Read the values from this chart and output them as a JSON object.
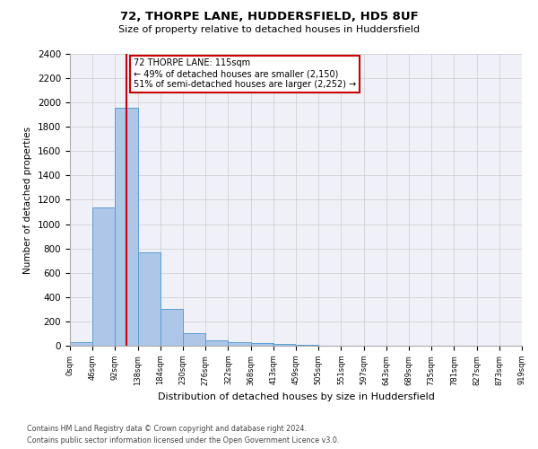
{
  "title1": "72, THORPE LANE, HUDDERSFIELD, HD5 8UF",
  "title2": "Size of property relative to detached houses in Huddersfield",
  "xlabel": "Distribution of detached houses by size in Huddersfield",
  "ylabel": "Number of detached properties",
  "footnote1": "Contains HM Land Registry data © Crown copyright and database right 2024.",
  "footnote2": "Contains public sector information licensed under the Open Government Licence v3.0.",
  "bar_left_edges": [
    0,
    46,
    92,
    138,
    184,
    230,
    276,
    322,
    368,
    413,
    459,
    505,
    551,
    597,
    643,
    689,
    735,
    781,
    827,
    873
  ],
  "bar_heights": [
    30,
    1140,
    1960,
    770,
    300,
    100,
    42,
    30,
    25,
    15,
    10,
    0,
    0,
    0,
    0,
    0,
    0,
    0,
    0,
    0
  ],
  "bin_width": 46,
  "bar_color": "#aec6e8",
  "bar_edge_color": "#5a9fd4",
  "grid_color": "#cccccc",
  "property_line_x": 115,
  "property_line_color": "#cc0000",
  "annotation_line1": "72 THORPE LANE: 115sqm",
  "annotation_line2": "← 49% of detached houses are smaller (2,150)",
  "annotation_line3": "51% of semi-detached houses are larger (2,252) →",
  "annotation_box_edgecolor": "#cc0000",
  "ylim_max": 2400,
  "yticks": [
    0,
    200,
    400,
    600,
    800,
    1000,
    1200,
    1400,
    1600,
    1800,
    2000,
    2200,
    2400
  ],
  "xtick_labels": [
    "0sqm",
    "46sqm",
    "92sqm",
    "138sqm",
    "184sqm",
    "230sqm",
    "276sqm",
    "322sqm",
    "368sqm",
    "413sqm",
    "459sqm",
    "505sqm",
    "551sqm",
    "597sqm",
    "643sqm",
    "689sqm",
    "735sqm",
    "781sqm",
    "827sqm",
    "873sqm",
    "919sqm"
  ],
  "background_color": "#ffffff",
  "plot_bg_color": "#f0f0f8"
}
